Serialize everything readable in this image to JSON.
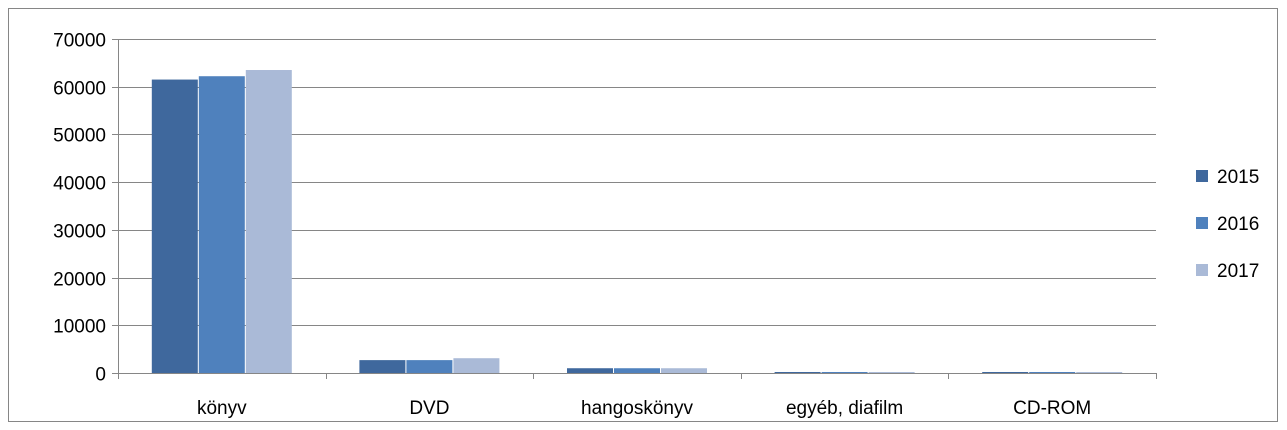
{
  "chart_data": {
    "type": "bar",
    "title": "",
    "xlabel": "",
    "ylabel": "",
    "categories": [
      "könyv",
      "DVD",
      "hangoskönyv",
      "egyéb, diafilm",
      "CD-ROM"
    ],
    "series": [
      {
        "name": "2015",
        "color": "#3F689D",
        "values": [
          61500,
          2700,
          1000,
          150,
          120
        ]
      },
      {
        "name": "2016",
        "color": "#4F81BD",
        "values": [
          62200,
          2700,
          1000,
          150,
          110
        ]
      },
      {
        "name": "2017",
        "color": "#AABAD7",
        "values": [
          63500,
          3100,
          1000,
          150,
          100
        ]
      }
    ],
    "ylim": [
      0,
      70000
    ],
    "yticks": [
      0,
      10000,
      20000,
      30000,
      40000,
      50000,
      60000,
      70000
    ],
    "grid": true,
    "legend": "right"
  }
}
